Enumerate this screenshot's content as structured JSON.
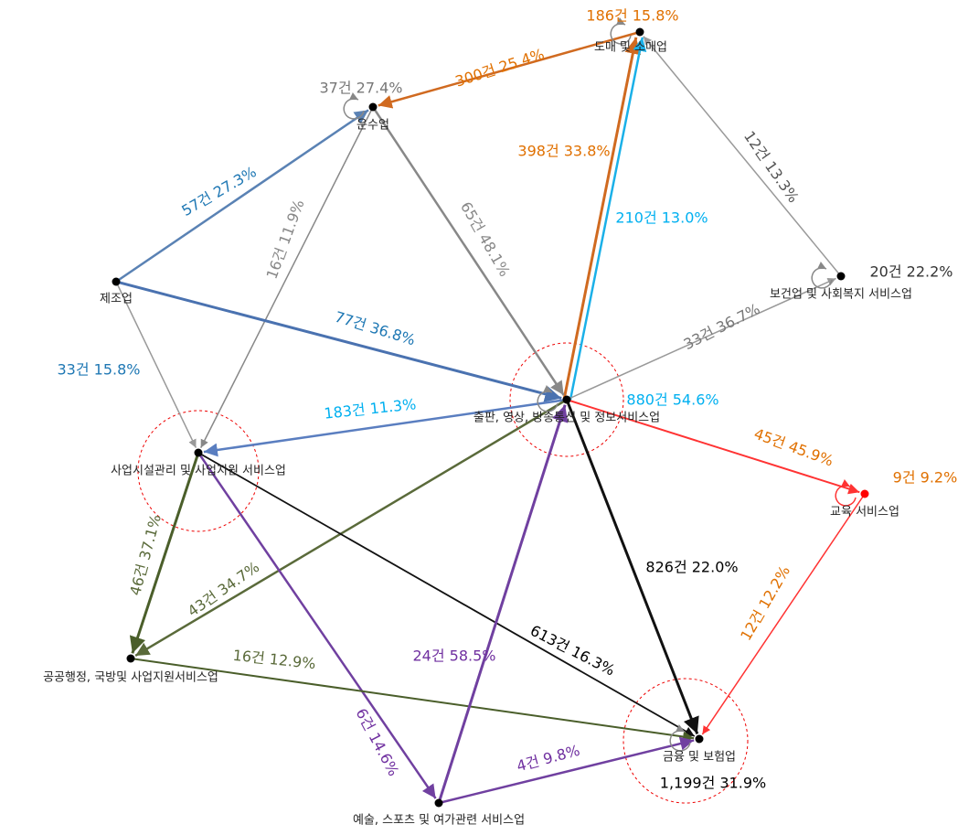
{
  "nodes": [
    {
      "label": "도매 및 소매업",
      "self": "186건 15.8%"
    },
    {
      "label": "운수업",
      "self": "37건 27.4%"
    },
    {
      "label": "제조업"
    },
    {
      "label": "보건업 및 사회복지 서비스업",
      "self": "20건 22.2%"
    },
    {
      "label": "출판, 영상, 방송통신 및 정보서비스업",
      "self": "880건 54.6%"
    },
    {
      "label": "사업시설관리 및 사업지원 서비스업"
    },
    {
      "label": "교육 서비스업",
      "self": "9건 9.2%"
    },
    {
      "label": "공공행정, 국방및 사업지원서비스업"
    },
    {
      "label": "금융 및 보험업",
      "self": "1,199건 31.9%"
    },
    {
      "label": "예술, 스포츠 및 여가관련 서비스업"
    }
  ],
  "edges": [
    {
      "label": "300건 25.4%"
    },
    {
      "label": "398건 33.8%"
    },
    {
      "label": "210건 13.0%"
    },
    {
      "label": "12건 13.3%"
    },
    {
      "label": "57건 27.3%"
    },
    {
      "label": "16건 11.9%"
    },
    {
      "label": "65건 48.1%"
    },
    {
      "label": "77건 36.8%"
    },
    {
      "label": "33건 15.8%"
    },
    {
      "label": "33건 36.7%"
    },
    {
      "label": "183건 11.3%"
    },
    {
      "label": "45건 45.9%"
    },
    {
      "label": "826건 22.0%"
    },
    {
      "label": "43건 34.7%"
    },
    {
      "label": "46건 37.1%"
    },
    {
      "label": "613건 16.3%"
    },
    {
      "label": "6건 14.6%"
    },
    {
      "label": "16건 12.9%"
    },
    {
      "label": "24건 58.5%"
    },
    {
      "label": "12건 12.2%"
    },
    {
      "label": "4건 9.8%"
    }
  ]
}
